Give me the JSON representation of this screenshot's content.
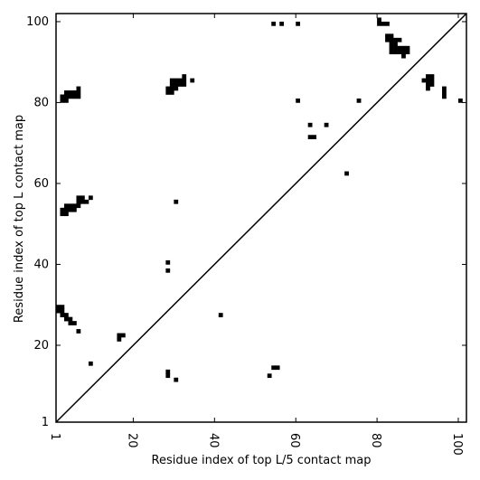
{
  "chart_data": {
    "type": "heatmap",
    "title": "",
    "xlabel": "Residue index of top L/5 contact map",
    "ylabel": "Residue index of top L contact map",
    "xlim": [
      1,
      102
    ],
    "ylim": [
      1,
      102
    ],
    "x_ticks": [
      1,
      20,
      40,
      60,
      80,
      100
    ],
    "x_tick_labels": [
      "1",
      "20",
      "40",
      "60",
      "80",
      "100"
    ],
    "y_ticks": [
      1,
      20,
      40,
      60,
      80,
      100
    ],
    "y_tick_labels": [
      "1",
      "20",
      "40",
      "60",
      "80",
      "100"
    ],
    "x_tick_rotation_deg": -90,
    "grid": false,
    "diagonal_line": [
      [
        1,
        1
      ],
      [
        102,
        102
      ]
    ],
    "cell_color": "#000000",
    "line_color": "#000000",
    "contacts_upper_left_top_L": [
      [
        2,
        80
      ],
      [
        3,
        80
      ],
      [
        2,
        81
      ],
      [
        3,
        81
      ],
      [
        4,
        81
      ],
      [
        5,
        81
      ],
      [
        6,
        81
      ],
      [
        3,
        82
      ],
      [
        4,
        82
      ],
      [
        5,
        82
      ],
      [
        6,
        82
      ],
      [
        6,
        83
      ],
      [
        2,
        52
      ],
      [
        3,
        52
      ],
      [
        2,
        53
      ],
      [
        3,
        53
      ],
      [
        4,
        53
      ],
      [
        5,
        53
      ],
      [
        3,
        54
      ],
      [
        4,
        54
      ],
      [
        5,
        54
      ],
      [
        6,
        54
      ],
      [
        6,
        55
      ],
      [
        7,
        55
      ],
      [
        8,
        55
      ],
      [
        6,
        56
      ],
      [
        7,
        56
      ],
      [
        9,
        56
      ],
      [
        1,
        28
      ],
      [
        2,
        28
      ],
      [
        1,
        29
      ],
      [
        2,
        29
      ],
      [
        2,
        27
      ],
      [
        3,
        27
      ],
      [
        3,
        26
      ],
      [
        4,
        26
      ],
      [
        4,
        25
      ],
      [
        5,
        25
      ],
      [
        6,
        23
      ],
      [
        9,
        15
      ],
      [
        16,
        21
      ],
      [
        16,
        22
      ],
      [
        17,
        22
      ],
      [
        28,
        82
      ],
      [
        29,
        82
      ],
      [
        28,
        83
      ],
      [
        29,
        83
      ],
      [
        30,
        83
      ],
      [
        29,
        84
      ],
      [
        30,
        84
      ],
      [
        31,
        84
      ],
      [
        32,
        84
      ],
      [
        29,
        85
      ],
      [
        30,
        85
      ],
      [
        31,
        85
      ],
      [
        32,
        85
      ],
      [
        32,
        86
      ],
      [
        34,
        85
      ],
      [
        30,
        55
      ],
      [
        28,
        40
      ],
      [
        28,
        38
      ],
      [
        41,
        27
      ],
      [
        54,
        99
      ],
      [
        56,
        99
      ],
      [
        60,
        99
      ],
      [
        60,
        80
      ],
      [
        63,
        74
      ],
      [
        67,
        74
      ],
      [
        63,
        71
      ],
      [
        64,
        71
      ],
      [
        72,
        62
      ],
      [
        75,
        80
      ],
      [
        100,
        80
      ],
      [
        80,
        100
      ],
      [
        80,
        99
      ],
      [
        81,
        99
      ],
      [
        82,
        99
      ],
      [
        82,
        96
      ],
      [
        83,
        96
      ],
      [
        82,
        95
      ],
      [
        83,
        95
      ],
      [
        84,
        95
      ],
      [
        85,
        95
      ],
      [
        83,
        94
      ],
      [
        84,
        94
      ],
      [
        83,
        93
      ],
      [
        84,
        93
      ],
      [
        85,
        93
      ],
      [
        86,
        93
      ],
      [
        87,
        93
      ],
      [
        83,
        92
      ],
      [
        84,
        92
      ],
      [
        85,
        92
      ],
      [
        86,
        92
      ],
      [
        87,
        92
      ],
      [
        86,
        91
      ],
      [
        92,
        86
      ],
      [
        93,
        86
      ],
      [
        91,
        85
      ],
      [
        92,
        85
      ],
      [
        93,
        85
      ],
      [
        92,
        84
      ],
      [
        93,
        84
      ],
      [
        92,
        83
      ],
      [
        96,
        83
      ],
      [
        96,
        82
      ],
      [
        96,
        81
      ]
    ],
    "contacts_lower_right_top_L5": [
      [
        28,
        13
      ],
      [
        28,
        12
      ],
      [
        30,
        11
      ],
      [
        53,
        12
      ],
      [
        54,
        14
      ],
      [
        55,
        14
      ]
    ]
  }
}
